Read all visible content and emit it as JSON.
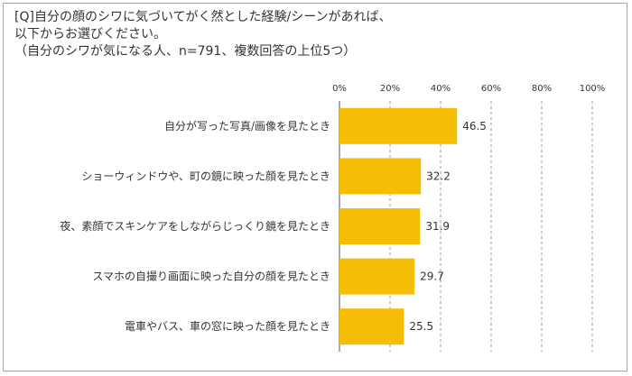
{
  "title_lines": [
    "[Q]自分の顔のシワに気づいてがく然とした経験/シーンがあれば、",
    "以下からお選びください。",
    "（自分のシワが気になる人、n=791、複数回答の上位5つ）"
  ],
  "chart_data": {
    "type": "bar",
    "orientation": "horizontal",
    "categories": [
      "自分が写った写真/画像を見たとき",
      "ショーウィンドウや、町の鏡に映った顔を見たとき",
      "夜、素顔でスキンケアをしながらじっくり鏡を見たとき",
      "スマホの自撮り画面に映った自分の顔を見たとき",
      "電車やバス、車の窓に映った顔を見たとき"
    ],
    "values": [
      46.5,
      32.2,
      31.9,
      29.7,
      25.5
    ],
    "xlim": [
      0,
      100
    ],
    "xticks": [
      "0%",
      "20%",
      "40%",
      "60%",
      "80%",
      "100%"
    ],
    "bar_color": "#f5bd04",
    "grid": true,
    "xaxis_position": "top",
    "legend": "none"
  }
}
